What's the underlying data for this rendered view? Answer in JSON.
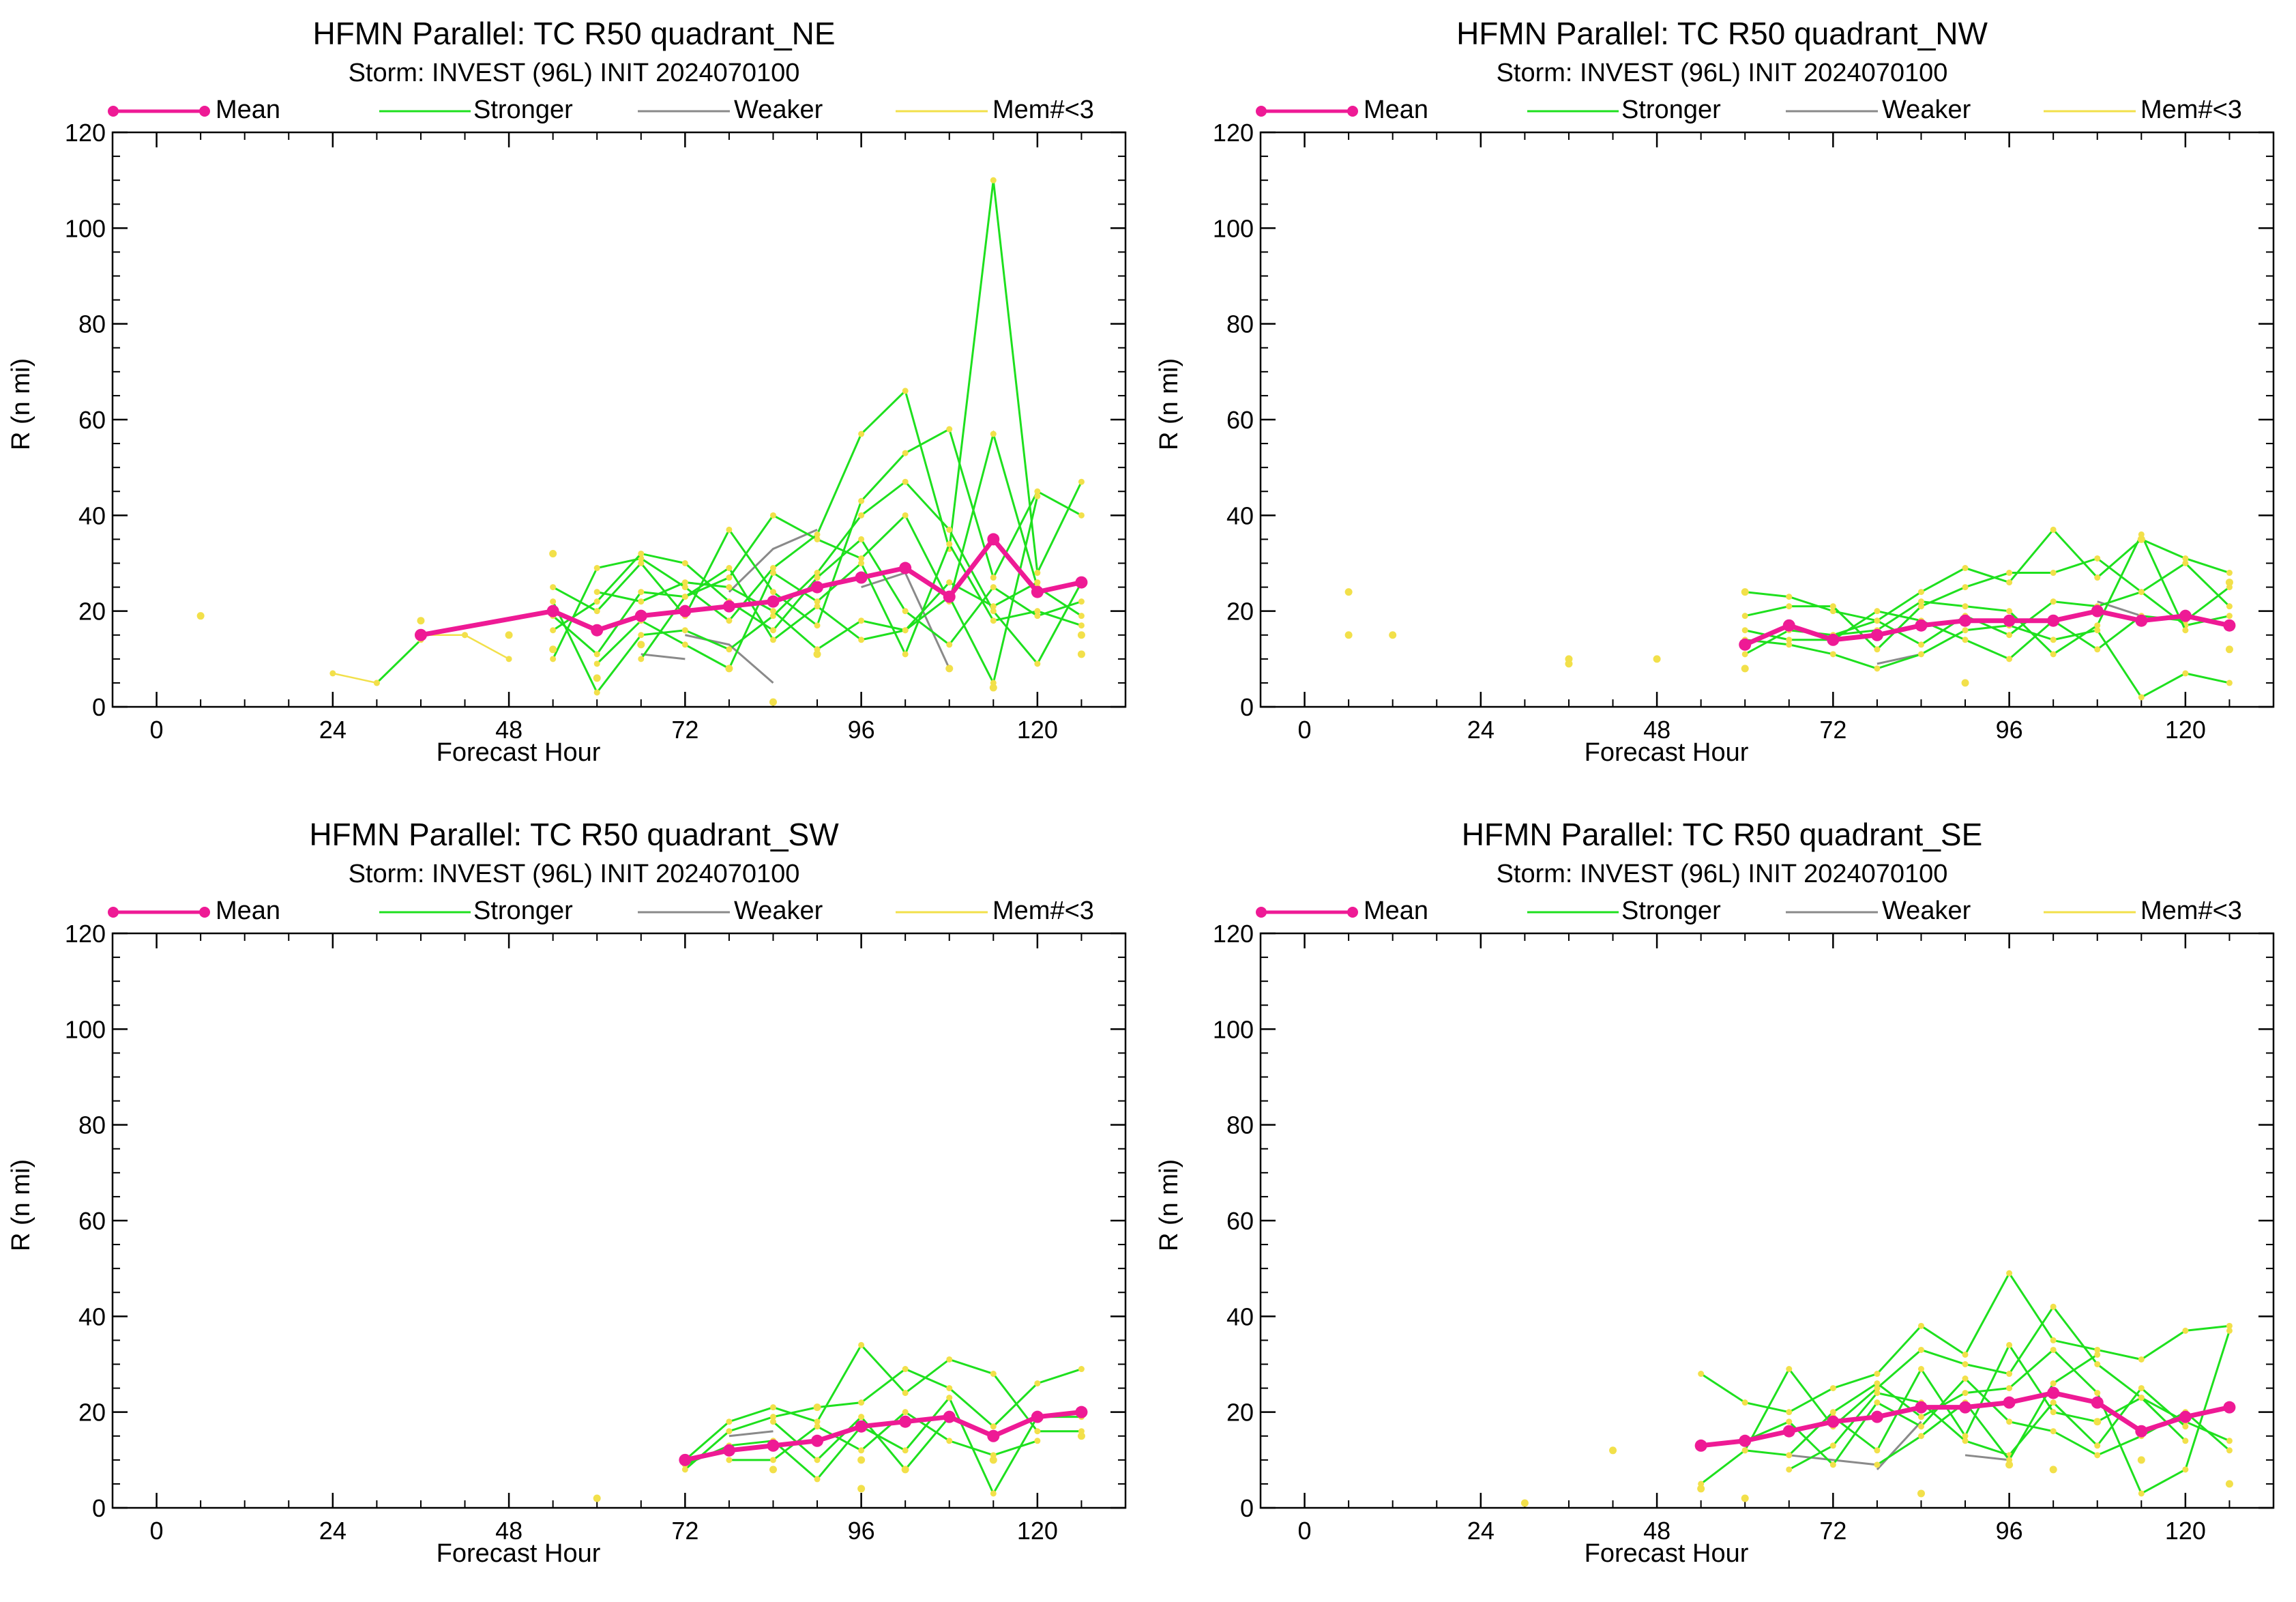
{
  "legend": [
    {
      "label": "Mean",
      "color": "#ee1a95"
    },
    {
      "label": "Stronger",
      "color": "#1ee01e"
    },
    {
      "label": "Weaker",
      "color": "#8a8a8a"
    },
    {
      "label": "Mem#<3",
      "color": "#f2e04a"
    }
  ],
  "chart_data": [
    {
      "type": "line",
      "title": "HFMN Parallel: TC  R50 quadrant_NE",
      "subtitle": "Storm: INVEST (96L) INIT 2024070100",
      "xlabel": "Forecast Hour",
      "ylabel": "R (n mi)",
      "xlim": [
        -6,
        132
      ],
      "ylim": [
        0,
        120
      ],
      "xticks": [
        0,
        24,
        48,
        72,
        96,
        120
      ],
      "yticks": [
        0,
        20,
        40,
        60,
        80,
        100,
        120
      ],
      "mean": {
        "x": [
          36,
          54,
          60,
          66,
          72,
          78,
          84,
          90,
          96,
          102,
          108,
          114,
          120,
          126
        ],
        "y": [
          15,
          20,
          16,
          19,
          20,
          21,
          22,
          25,
          27,
          29,
          23,
          35,
          24,
          26
        ]
      },
      "stronger": [
        {
          "x": [
            30,
            36
          ],
          "y": [
            5,
            14
          ]
        },
        {
          "x": [
            54,
            60,
            66,
            72,
            78,
            84,
            90,
            96,
            102,
            108,
            114,
            120,
            126
          ],
          "y": [
            10,
            29,
            31,
            25,
            18,
            29,
            36,
            57,
            66,
            33,
            110,
            28,
            47
          ]
        },
        {
          "x": [
            54,
            60,
            66,
            72,
            78,
            84,
            90,
            96,
            102,
            108,
            114,
            120,
            126
          ],
          "y": [
            25,
            20,
            30,
            19,
            37,
            24,
            17,
            43,
            53,
            58,
            27,
            45,
            40
          ]
        },
        {
          "x": [
            54,
            60,
            66,
            72,
            78,
            84,
            90,
            96,
            102,
            108,
            114,
            120,
            126
          ],
          "y": [
            22,
            3,
            15,
            16,
            12,
            19,
            28,
            40,
            47,
            37,
            20,
            9,
            26
          ]
        },
        {
          "x": [
            54,
            60,
            66,
            72,
            78,
            84,
            90,
            96,
            102,
            108,
            114,
            120,
            126
          ],
          "y": [
            19,
            11,
            24,
            23,
            27,
            40,
            35,
            31,
            40,
            22,
            57,
            25,
            19
          ]
        },
        {
          "x": [
            60,
            66,
            72,
            78,
            84,
            90,
            96,
            102,
            108,
            114,
            120
          ],
          "y": [
            24,
            22,
            26,
            25,
            20,
            12,
            18,
            16,
            23,
            5,
            44
          ]
        },
        {
          "x": [
            54,
            60,
            66,
            72,
            78,
            84,
            90,
            96,
            102,
            108,
            114,
            120,
            126
          ],
          "y": [
            16,
            22,
            32,
            30,
            22,
            16,
            27,
            35,
            20,
            13,
            25,
            19,
            22
          ]
        },
        {
          "x": [
            60,
            66,
            72,
            78,
            84,
            90,
            96,
            102,
            108,
            114,
            120,
            126
          ],
          "y": [
            9,
            18,
            13,
            8,
            28,
            22,
            30,
            11,
            34,
            18,
            20,
            17
          ]
        },
        {
          "x": [
            66,
            72,
            78,
            84,
            90,
            96,
            102,
            108,
            114,
            120
          ],
          "y": [
            10,
            23,
            29,
            14,
            21,
            14,
            16,
            26,
            21,
            26
          ]
        }
      ],
      "weaker": [
        {
          "x": [
            66,
            72
          ],
          "y": [
            11,
            10
          ]
        },
        {
          "x": [
            72,
            78,
            84
          ],
          "y": [
            15,
            13,
            5
          ]
        },
        {
          "x": [
            78,
            84,
            90
          ],
          "y": [
            24,
            33,
            37
          ]
        },
        {
          "x": [
            96,
            102,
            108
          ],
          "y": [
            25,
            28,
            8
          ]
        }
      ],
      "mem_lt3": [
        {
          "x": [
            42,
            48
          ],
          "y": [
            15,
            10
          ]
        },
        {
          "x": [
            24,
            30
          ],
          "y": [
            7,
            5
          ]
        },
        {
          "x": [
            36,
            42
          ],
          "y": [
            15,
            15
          ]
        }
      ],
      "mem_lt3_points": {
        "x": [
          6,
          36,
          48,
          54,
          54,
          60,
          66,
          84,
          108,
          114,
          126,
          126,
          90,
          78
        ],
        "y": [
          19,
          18,
          15,
          32,
          12,
          6,
          13,
          1,
          8,
          4,
          15,
          11,
          11,
          8
        ]
      }
    },
    {
      "type": "line",
      "title": "HFMN Parallel: TC  R50 quadrant_NW",
      "subtitle": "Storm: INVEST (96L) INIT 2024070100",
      "xlabel": "Forecast Hour",
      "ylabel": "R (n mi)",
      "xlim": [
        -6,
        132
      ],
      "ylim": [
        0,
        120
      ],
      "xticks": [
        0,
        24,
        48,
        72,
        96,
        120
      ],
      "yticks": [
        0,
        20,
        40,
        60,
        80,
        100,
        120
      ],
      "mean": {
        "x": [
          60,
          66,
          72,
          78,
          84,
          90,
          96,
          102,
          108,
          114,
          120,
          126
        ],
        "y": [
          13,
          17,
          14,
          15,
          17,
          18,
          18,
          18,
          20,
          18,
          19,
          17
        ]
      },
      "stronger": [
        {
          "x": [
            60,
            66,
            72,
            78,
            84,
            90,
            96,
            102,
            108,
            114,
            120,
            126
          ],
          "y": [
            24,
            23,
            20,
            18,
            24,
            29,
            26,
            37,
            27,
            35,
            31,
            28
          ]
        },
        {
          "x": [
            60,
            66,
            72,
            78,
            84,
            90,
            96,
            102,
            108,
            114,
            120,
            126
          ],
          "y": [
            19,
            21,
            21,
            12,
            21,
            25,
            28,
            28,
            31,
            24,
            30,
            21
          ]
        },
        {
          "x": [
            60,
            66,
            72,
            78,
            84,
            90,
            96,
            102,
            108,
            114,
            120,
            126
          ],
          "y": [
            11,
            16,
            15,
            18,
            13,
            19,
            15,
            22,
            21,
            24,
            17,
            19
          ]
        },
        {
          "x": [
            60,
            66,
            72,
            78,
            84,
            90,
            96,
            102,
            108,
            114,
            120,
            126
          ],
          "y": [
            14,
            13,
            11,
            8,
            11,
            16,
            17,
            14,
            16,
            2,
            7,
            5
          ]
        },
        {
          "x": [
            60,
            66,
            72,
            78,
            84,
            90,
            96,
            102,
            108,
            114,
            120,
            126
          ],
          "y": [
            16,
            14,
            14,
            20,
            18,
            14,
            10,
            18,
            12,
            19,
            18,
            25
          ]
        },
        {
          "x": [
            72,
            78,
            84,
            90,
            96,
            102,
            108,
            114,
            120
          ],
          "y": [
            15,
            16,
            22,
            21,
            20,
            11,
            17,
            36,
            16
          ]
        }
      ],
      "weaker": [
        {
          "x": [
            78,
            84
          ],
          "y": [
            9,
            11
          ]
        },
        {
          "x": [
            108,
            114
          ],
          "y": [
            22,
            19
          ]
        }
      ],
      "mem_lt3": [],
      "mem_lt3_points": {
        "x": [
          6,
          6,
          12,
          36,
          36,
          48,
          60,
          60,
          90,
          114,
          126,
          126
        ],
        "y": [
          24,
          15,
          15,
          10,
          9,
          10,
          8,
          24,
          5,
          35,
          26,
          12
        ]
      }
    },
    {
      "type": "line",
      "title": "HFMN Parallel: TC  R50 quadrant_SW",
      "subtitle": "Storm: INVEST (96L) INIT 2024070100",
      "xlabel": "Forecast Hour",
      "ylabel": "R (n mi)",
      "xlim": [
        -6,
        132
      ],
      "ylim": [
        0,
        120
      ],
      "xticks": [
        0,
        24,
        48,
        72,
        96,
        120
      ],
      "yticks": [
        0,
        20,
        40,
        60,
        80,
        100,
        120
      ],
      "mean": {
        "x": [
          72,
          78,
          84,
          90,
          96,
          102,
          108,
          114,
          120,
          126
        ],
        "y": [
          10,
          12,
          13,
          14,
          17,
          18,
          19,
          15,
          19,
          20
        ]
      },
      "stronger": [
        {
          "x": [
            72,
            78,
            84,
            90,
            96,
            102,
            108,
            114,
            120,
            126
          ],
          "y": [
            10,
            18,
            21,
            18,
            34,
            24,
            31,
            28,
            16,
            16
          ]
        },
        {
          "x": [
            72,
            78,
            84,
            90,
            96,
            102,
            108,
            114,
            120,
            126
          ],
          "y": [
            8,
            16,
            19,
            21,
            22,
            29,
            25,
            17,
            26,
            29
          ]
        },
        {
          "x": [
            72,
            78,
            84,
            90,
            96,
            102,
            108,
            114,
            120,
            126
          ],
          "y": [
            9,
            13,
            14,
            6,
            17,
            12,
            23,
            3,
            19,
            19
          ]
        },
        {
          "x": [
            78,
            84,
            90,
            96,
            102,
            108,
            114,
            120
          ],
          "y": [
            10,
            10,
            17,
            12,
            20,
            14,
            11,
            14
          ]
        },
        {
          "x": [
            84,
            90,
            96,
            102,
            108
          ],
          "y": [
            18,
            10,
            19,
            8,
            19
          ]
        }
      ],
      "weaker": [
        {
          "x": [
            78,
            84
          ],
          "y": [
            15,
            16
          ]
        }
      ],
      "mem_lt3": [],
      "mem_lt3_points": {
        "x": [
          60,
          84,
          90,
          96,
          96,
          102,
          114,
          126
        ],
        "y": [
          2,
          8,
          21,
          10,
          4,
          8,
          10,
          15
        ]
      }
    },
    {
      "type": "line",
      "title": "HFMN Parallel: TC  R50 quadrant_SE",
      "subtitle": "Storm: INVEST (96L) INIT 2024070100",
      "xlabel": "Forecast Hour",
      "ylabel": "R (n mi)",
      "xlim": [
        -6,
        132
      ],
      "ylim": [
        0,
        120
      ],
      "xticks": [
        0,
        24,
        48,
        72,
        96,
        120
      ],
      "yticks": [
        0,
        20,
        40,
        60,
        80,
        100,
        120
      ],
      "mean": {
        "x": [
          54,
          60,
          66,
          72,
          78,
          84,
          90,
          96,
          102,
          108,
          114,
          120,
          126
        ],
        "y": [
          13,
          14,
          16,
          18,
          19,
          21,
          21,
          22,
          24,
          22,
          16,
          19,
          21
        ]
      },
      "stronger": [
        {
          "x": [
            54,
            60,
            66,
            72,
            78,
            84,
            90,
            96,
            102,
            108,
            114,
            120,
            126
          ],
          "y": [
            28,
            22,
            20,
            25,
            28,
            38,
            32,
            49,
            35,
            33,
            31,
            37,
            38
          ]
        },
        {
          "x": [
            54,
            60,
            66,
            72,
            78,
            84,
            90,
            96,
            102,
            108,
            114,
            120,
            126
          ],
          "y": [
            5,
            12,
            29,
            17,
            25,
            33,
            30,
            28,
            42,
            30,
            23,
            18,
            14
          ]
        },
        {
          "x": [
            60,
            66,
            72,
            78,
            84,
            90,
            96,
            102,
            108,
            114,
            120,
            126
          ],
          "y": [
            12,
            11,
            20,
            26,
            19,
            24,
            25,
            33,
            24,
            3,
            8,
            37
          ]
        },
        {
          "x": [
            60,
            66,
            72,
            78,
            84,
            90,
            96,
            102,
            108,
            114,
            120,
            126
          ],
          "y": [
            14,
            18,
            9,
            22,
            17,
            27,
            18,
            16,
            11,
            15,
            20,
            12
          ]
        },
        {
          "x": [
            66,
            72,
            78,
            84,
            90,
            96,
            102,
            108,
            114,
            120
          ],
          "y": [
            8,
            13,
            24,
            22,
            14,
            11,
            22,
            13,
            25,
            17
          ]
        },
        {
          "x": [
            72,
            78,
            84,
            90,
            96,
            102,
            108,
            114,
            120
          ],
          "y": [
            19,
            12,
            29,
            15,
            34,
            20,
            18,
            23,
            14
          ]
        },
        {
          "x": [
            78,
            84,
            90,
            96,
            102,
            108
          ],
          "y": [
            9,
            15,
            22,
            10,
            26,
            32
          ]
        }
      ],
      "weaker": [
        {
          "x": [
            66,
            72,
            78
          ],
          "y": [
            11,
            10,
            9
          ]
        },
        {
          "x": [
            78,
            84
          ],
          "y": [
            8,
            18
          ]
        },
        {
          "x": [
            90,
            96
          ],
          "y": [
            11,
            10
          ]
        }
      ],
      "mem_lt3": [],
      "mem_lt3_points": {
        "x": [
          30,
          42,
          54,
          60,
          84,
          96,
          102,
          108,
          114,
          126
        ],
        "y": [
          1,
          12,
          4,
          2,
          3,
          9,
          8,
          18,
          10,
          5
        ]
      }
    }
  ]
}
